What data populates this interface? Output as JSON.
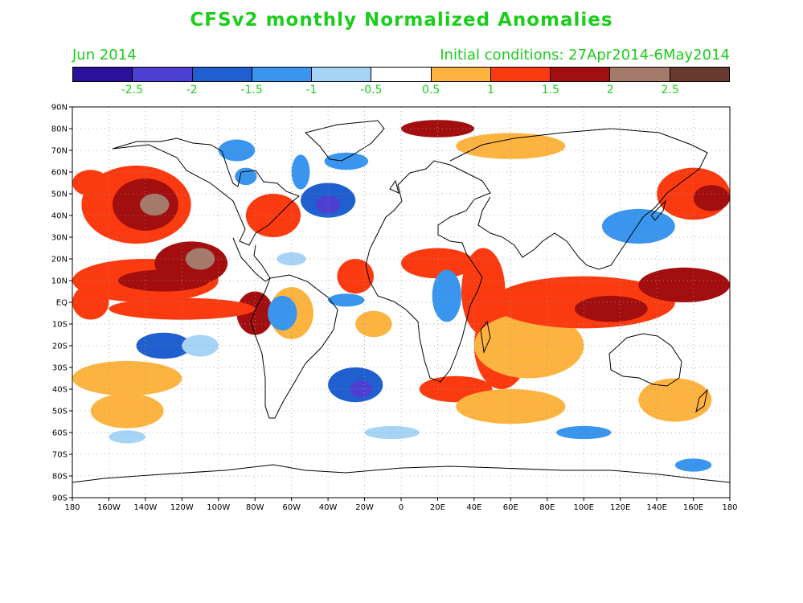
{
  "title": "CFSv2 monthly Normalized Anomalies",
  "valid_period": "Jun 2014",
  "initial_conditions": "Initial conditions: 27Apr2014-6May2014",
  "colorbar": {
    "colors": [
      "#2a109a",
      "#4d3fd1",
      "#1f5fd0",
      "#3a95ef",
      "#a6d4f7",
      "#ffffff",
      "#fdb33f",
      "#fb3a10",
      "#a30e0e",
      "#a47a6b",
      "#6b3a2e"
    ],
    "labels": [
      "-2.5",
      "-2",
      "-1.5",
      "-1",
      "-0.5",
      "0.5",
      "1",
      "1.5",
      "2",
      "2.5"
    ]
  },
  "axes": {
    "lat_labels": [
      "90N",
      "80N",
      "70N",
      "60N",
      "50N",
      "40N",
      "30N",
      "20N",
      "10N",
      "EQ",
      "10S",
      "20S",
      "30S",
      "40S",
      "50S",
      "60S",
      "70S",
      "80S",
      "90S"
    ],
    "lon_labels": [
      "180",
      "160W",
      "140W",
      "120W",
      "100W",
      "80W",
      "60W",
      "40W",
      "20W",
      "0",
      "20E",
      "40E",
      "60E",
      "80E",
      "100E",
      "120E",
      "140E",
      "160E",
      "180"
    ]
  },
  "anomaly_regions": [
    {
      "lon": -145,
      "lat": 45,
      "rx": 30,
      "ry": 18,
      "level": 1
    },
    {
      "lon": -140,
      "lat": 45,
      "rx": 18,
      "ry": 12,
      "level": 2
    },
    {
      "lon": -135,
      "lat": 45,
      "rx": 8,
      "ry": 5,
      "level": 3
    },
    {
      "lon": -140,
      "lat": 10,
      "rx": 40,
      "ry": 10,
      "level": 1
    },
    {
      "lon": -130,
      "lat": 10,
      "rx": 25,
      "ry": 5,
      "level": 2
    },
    {
      "lon": -115,
      "lat": 18,
      "rx": 20,
      "ry": 10,
      "level": 2
    },
    {
      "lon": -110,
      "lat": 20,
      "rx": 8,
      "ry": 5,
      "level": 3
    },
    {
      "lon": -80,
      "lat": -5,
      "rx": 10,
      "ry": 10,
      "level": 2
    },
    {
      "lon": -120,
      "lat": -3,
      "rx": 40,
      "ry": 5,
      "level": 1
    },
    {
      "lon": -170,
      "lat": 0,
      "rx": 10,
      "ry": 8,
      "level": 1
    },
    {
      "lon": -170,
      "lat": 55,
      "rx": 10,
      "ry": 6,
      "level": 1
    },
    {
      "lon": -60,
      "lat": -5,
      "rx": 12,
      "ry": 12,
      "level": 0
    },
    {
      "lon": -25,
      "lat": 12,
      "rx": 10,
      "ry": 8,
      "level": 1
    },
    {
      "lon": -15,
      "lat": -10,
      "rx": 10,
      "ry": 6,
      "level": 0
    },
    {
      "lon": 20,
      "lat": 18,
      "rx": 20,
      "ry": 7,
      "level": 1
    },
    {
      "lon": 45,
      "lat": 5,
      "rx": 12,
      "ry": 20,
      "level": 1
    },
    {
      "lon": 55,
      "lat": -20,
      "rx": 15,
      "ry": 20,
      "level": 1
    },
    {
      "lon": 70,
      "lat": -20,
      "rx": 30,
      "ry": 15,
      "level": 0
    },
    {
      "lon": 100,
      "lat": 0,
      "rx": 50,
      "ry": 12,
      "level": 1
    },
    {
      "lon": 155,
      "lat": 8,
      "rx": 25,
      "ry": 8,
      "level": 2
    },
    {
      "lon": 115,
      "lat": -3,
      "rx": 20,
      "ry": 6,
      "level": 2
    },
    {
      "lon": 160,
      "lat": 50,
      "rx": 20,
      "ry": 12,
      "level": 1
    },
    {
      "lon": 170,
      "lat": 48,
      "rx": 10,
      "ry": 6,
      "level": 2
    },
    {
      "lon": 30,
      "lat": -40,
      "rx": 20,
      "ry": 6,
      "level": 1
    },
    {
      "lon": 60,
      "lat": -48,
      "rx": 30,
      "ry": 8,
      "level": 0
    },
    {
      "lon": 150,
      "lat": -45,
      "rx": 20,
      "ry": 10,
      "level": 0
    },
    {
      "lon": -150,
      "lat": -35,
      "rx": 30,
      "ry": 8,
      "level": 0
    },
    {
      "lon": -150,
      "lat": -50,
      "rx": 20,
      "ry": 8,
      "level": 0
    },
    {
      "lon": 20,
      "lat": 80,
      "rx": 20,
      "ry": 4,
      "level": 2
    },
    {
      "lon": 60,
      "lat": 72,
      "rx": 30,
      "ry": 6,
      "level": 0
    },
    {
      "lon": -70,
      "lat": 40,
      "rx": 15,
      "ry": 10,
      "level": 1
    }
  ],
  "negative_regions": [
    {
      "lon": -40,
      "lat": 47,
      "rx": 15,
      "ry": 8,
      "level": 2
    },
    {
      "lon": -40,
      "lat": 45,
      "rx": 7,
      "ry": 4,
      "level": 3
    },
    {
      "lon": -130,
      "lat": -20,
      "rx": 15,
      "ry": 6,
      "level": 2
    },
    {
      "lon": -25,
      "lat": -38,
      "rx": 15,
      "ry": 8,
      "level": 2
    },
    {
      "lon": -22,
      "lat": -40,
      "rx": 6,
      "ry": 4,
      "level": 3
    },
    {
      "lon": -65,
      "lat": -5,
      "rx": 8,
      "ry": 8,
      "level": 1
    },
    {
      "lon": 25,
      "lat": 3,
      "rx": 8,
      "ry": 12,
      "level": 1
    },
    {
      "lon": -30,
      "lat": 1,
      "rx": 10,
      "ry": 3,
      "level": 1
    },
    {
      "lon": 130,
      "lat": 35,
      "rx": 20,
      "ry": 8,
      "level": 1
    },
    {
      "lon": -110,
      "lat": -20,
      "rx": 10,
      "ry": 5,
      "level": 0
    },
    {
      "lon": 100,
      "lat": -60,
      "rx": 15,
      "ry": 3,
      "level": 1
    },
    {
      "lon": 160,
      "lat": -75,
      "rx": 10,
      "ry": 3,
      "level": 1
    },
    {
      "lon": -150,
      "lat": -62,
      "rx": 10,
      "ry": 3,
      "level": 0
    },
    {
      "lon": -90,
      "lat": 70,
      "rx": 10,
      "ry": 5,
      "level": 1
    },
    {
      "lon": -30,
      "lat": 65,
      "rx": 12,
      "ry": 4,
      "level": 1
    },
    {
      "lon": -55,
      "lat": 60,
      "rx": 5,
      "ry": 8,
      "level": 1
    },
    {
      "lon": -85,
      "lat": 58,
      "rx": 6,
      "ry": 4,
      "level": 1
    },
    {
      "lon": -60,
      "lat": 20,
      "rx": 8,
      "ry": 3,
      "level": 0
    },
    {
      "lon": -5,
      "lat": -60,
      "rx": 15,
      "ry": 3,
      "level": 0
    }
  ]
}
